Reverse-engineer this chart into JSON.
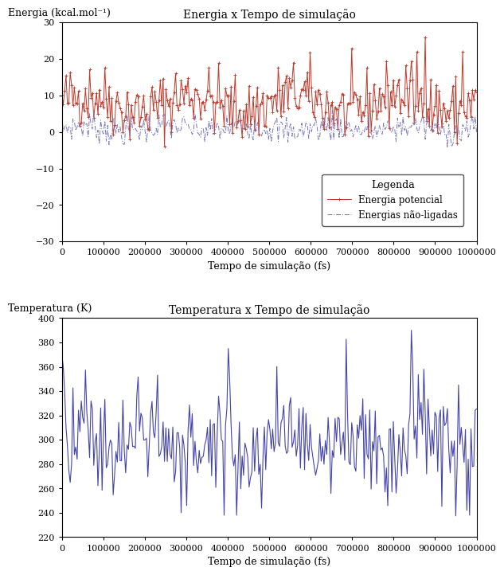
{
  "energy_title": "Energia x Tempo de simulação",
  "energy_ylabel": "Energia (kcal.mol⁻¹)",
  "energy_xlabel": "Tempo de simulação (fs)",
  "energy_ylim": [
    -30,
    30
  ],
  "energy_yticks": [
    -30,
    -20,
    -10,
    0,
    10,
    20,
    30
  ],
  "temp_title": "Temperatura x Tempo de simulação",
  "temp_ylabel": "Temperatura (K)",
  "temp_xlabel": "Tempo de simulação (fs)",
  "temp_ylim": [
    220,
    400
  ],
  "temp_yticks": [
    220,
    240,
    260,
    280,
    300,
    320,
    340,
    360,
    380,
    400
  ],
  "xlim": [
    0,
    1000000
  ],
  "xticks": [
    0,
    100000,
    200000,
    300000,
    400000,
    500000,
    600000,
    700000,
    800000,
    900000,
    1000000
  ],
  "legend_title": "Legenda",
  "label_pot": "Energia potencial",
  "label_nonbond": "Energias não-ligadas",
  "color_pot": "#c0392b",
  "color_nonbond": "#7777bb",
  "color_temp": "#4444aa",
  "background": "#ffffff"
}
